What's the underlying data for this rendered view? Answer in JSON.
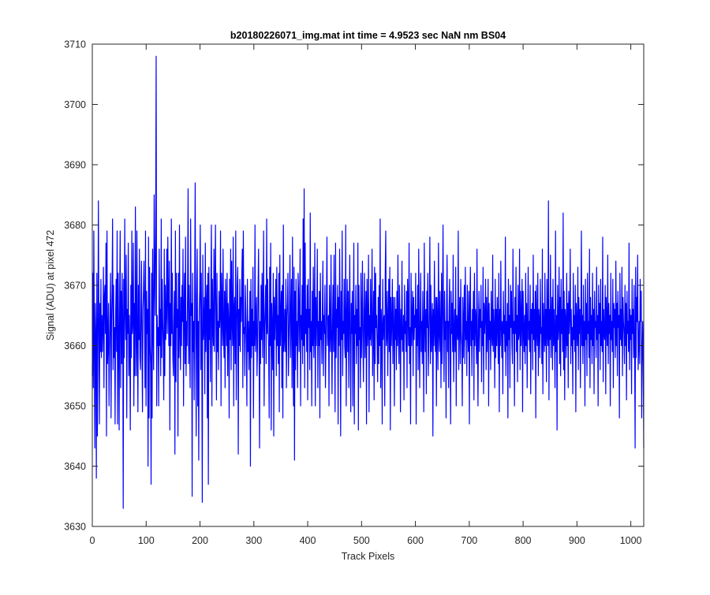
{
  "chart_data": {
    "type": "line",
    "title": "b20180226071_img.mat int time = 4.9523 sec  NaN nm BS04",
    "xlabel": "Track Pixels",
    "ylabel": "Signal (ADU) at pixel 472",
    "xlim": [
      0,
      1024
    ],
    "ylim": [
      3630,
      3710
    ],
    "xticks": [
      "0",
      "100",
      "200",
      "300",
      "400",
      "500",
      "600",
      "700",
      "800",
      "900",
      "1000"
    ],
    "yticks": [
      "3630",
      "3640",
      "3650",
      "3660",
      "3670",
      "3680",
      "3690",
      "3700",
      "3710"
    ],
    "grid": false,
    "legend": "none",
    "series_color": "#0000ff",
    "series": [
      {
        "values": [
          3655,
          3672,
          3653,
          3679,
          3660,
          3643,
          3667,
          3662,
          3638,
          3672,
          3645,
          3660,
          3684,
          3663,
          3647,
          3667,
          3659,
          3671,
          3658,
          3665,
          3659,
          3663,
          3673,
          3653,
          3668,
          3670,
          3662,
          3677,
          3645,
          3679,
          3657,
          3660,
          3667,
          3650,
          3659,
          3665,
          3672,
          3648,
          3664,
          3669,
          3681,
          3656,
          3670,
          3658,
          3663,
          3647,
          3665,
          3671,
          3659,
          3679,
          3647,
          3672,
          3662,
          3646,
          3668,
          3679,
          3653,
          3669,
          3657,
          3672,
          3664,
          3633,
          3671,
          3658,
          3681,
          3666,
          3661,
          3675,
          3648,
          3666,
          3662,
          3677,
          3655,
          3665,
          3660,
          3646,
          3670,
          3658,
          3679,
          3662,
          3664,
          3677,
          3650,
          3667,
          3655,
          3683,
          3664,
          3655,
          3679,
          3662,
          3649,
          3670,
          3661,
          3676,
          3658,
          3656,
          3665,
          3674,
          3660,
          3649,
          3666,
          3669,
          3674,
          3665,
          3653,
          3679,
          3650,
          3669,
          3662,
          3666,
          3640,
          3678,
          3648,
          3673,
          3660,
          3657,
          3637,
          3672,
          3648,
          3676,
          3663,
          3656,
          3685,
          3672,
          3665,
          3679,
          3708,
          3650,
          3665,
          3660,
          3663,
          3650,
          3676,
          3660,
          3666,
          3655,
          3681,
          3658,
          3671,
          3664,
          3660,
          3651,
          3676,
          3655,
          3670,
          3661,
          3665,
          3676,
          3662,
          3678,
          3668,
          3660,
          3674,
          3646,
          3667,
          3660,
          3681,
          3662,
          3672,
          3658,
          3655,
          3664,
          3669,
          3642,
          3679,
          3654,
          3672,
          3663,
          3666,
          3645,
          3672,
          3658,
          3680,
          3662,
          3656,
          3668,
          3660,
          3670,
          3664,
          3676,
          3650,
          3666,
          3672,
          3657,
          3678,
          3655,
          3664,
          3660,
          3669,
          3686,
          3657,
          3670,
          3661,
          3653,
          3681,
          3665,
          3667,
          3635,
          3672,
          3659,
          3664,
          3651,
          3670,
          3687,
          3662,
          3645,
          3668,
          3676,
          3650,
          3664,
          3641,
          3666,
          3669,
          3680,
          3656,
          3672,
          3660,
          3634,
          3675,
          3661,
          3663,
          3668,
          3652,
          3677,
          3659,
          3666,
          3670,
          3648,
          3672,
          3637,
          3673,
          3661,
          3666,
          3654,
          3670,
          3680,
          3650,
          3671,
          3663,
          3660,
          3676,
          3659,
          3670,
          3680,
          3664,
          3651,
          3672,
          3659,
          3664,
          3656,
          3669,
          3663,
          3665,
          3679,
          3650,
          3672,
          3667,
          3660,
          3676,
          3662,
          3658,
          3669,
          3653,
          3671,
          3665,
          3660,
          3672,
          3655,
          3667,
          3664,
          3648,
          3671,
          3661,
          3676,
          3656,
          3674,
          3664,
          3660,
          3678,
          3650,
          3666,
          3668,
          3657,
          3679,
          3651,
          3662,
          3670,
          3673,
          3642,
          3666,
          3660,
          3671,
          3659,
          3668,
          3664,
          3672,
          3676,
          3653,
          3679,
          3662,
          3663,
          3655,
          3670,
          3665,
          3660,
          3650,
          3671,
          3659,
          3664,
          3656,
          3662,
          3669,
          3640,
          3671,
          3658,
          3666,
          3660,
          3673,
          3648,
          3664,
          3660,
          3680,
          3659,
          3664,
          3668,
          3655,
          3660,
          3669,
          3676,
          3662,
          3643,
          3664,
          3657,
          3670,
          3661,
          3672,
          3658,
          3666,
          3679,
          3650,
          3663,
          3666,
          3670,
          3657,
          3681,
          3662,
          3671,
          3663,
          3659,
          3648,
          3673,
          3660,
          3677,
          3646,
          3667,
          3663,
          3656,
          3672,
          3645,
          3668,
          3661,
          3666,
          3671,
          3655,
          3673,
          3660,
          3665,
          3657,
          3672,
          3649,
          3675,
          3660,
          3665,
          3669,
          3653,
          3670,
          3648,
          3680,
          3659,
          3661,
          3666,
          3659,
          3671,
          3653,
          3665,
          3667,
          3672,
          3655,
          3661,
          3666,
          3675,
          3658,
          3664,
          3671,
          3653,
          3678,
          3661,
          3650,
          3673,
          3641,
          3669,
          3656,
          3671,
          3660,
          3664,
          3653,
          3672,
          3669,
          3659,
          3666,
          3676,
          3650,
          3665,
          3661,
          3670,
          3657,
          3681,
          3660,
          3686,
          3653,
          3677,
          3662,
          3666,
          3659,
          3670,
          3651,
          3671,
          3663,
          3666,
          3656,
          3682,
          3659,
          3664,
          3650,
          3669,
          3660,
          3673,
          3658,
          3663,
          3677,
          3650,
          3668,
          3660,
          3665,
          3676,
          3653,
          3664,
          3660,
          3669,
          3648,
          3672,
          3661,
          3664,
          3657,
          3666,
          3674,
          3655,
          3665,
          3662,
          3670,
          3653,
          3660,
          3667,
          3678,
          3660,
          3664,
          3665,
          3650,
          3670,
          3663,
          3659,
          3675,
          3662,
          3652,
          3664,
          3670,
          3659,
          3675,
          3661,
          3649,
          3677,
          3658,
          3666,
          3663,
          3670,
          3647,
          3668,
          3660,
          3676,
          3664,
          3645,
          3669,
          3661,
          3679,
          3655,
          3664,
          3662,
          3671,
          3660,
          3658,
          3680,
          3650,
          3663,
          3671,
          3659,
          3669,
          3653,
          3664,
          3675,
          3660,
          3649,
          3667,
          3662,
          3669,
          3650,
          3664,
          3677,
          3647,
          3665,
          3662,
          3670,
          3657,
          3666,
          3660,
          3677,
          3646,
          3670,
          3661,
          3663,
          3653,
          3672,
          3658,
          3664,
          3674,
          3660,
          3654,
          3666,
          3672,
          3658,
          3664,
          3669,
          3647,
          3671,
          3660,
          3663,
          3675,
          3649,
          3665,
          3661,
          3671,
          3660,
          3663,
          3676,
          3655,
          3662,
          3669,
          3651,
          3673,
          3657,
          3672,
          3663,
          3665,
          3660,
          3654,
          3668,
          3657,
          3670,
          3660,
          3681,
          3653,
          3666,
          3663,
          3647,
          3671,
          3661,
          3664,
          3665,
          3650,
          3672,
          3679,
          3660,
          3662,
          3669,
          3655,
          3664,
          3671,
          3659,
          3673,
          3646,
          3668,
          3660,
          3664,
          3671,
          3657,
          3668,
          3663,
          3650,
          3668,
          3661,
          3666,
          3656,
          3669,
          3660,
          3675,
          3662,
          3657,
          3670,
          3664,
          3649,
          3666,
          3661,
          3674,
          3659,
          3660,
          3665,
          3651,
          3670,
          3662,
          3664,
          3659,
          3669,
          3653,
          3671,
          3666,
          3660,
          3677,
          3657,
          3663,
          3647,
          3672,
          3660,
          3664,
          3669,
          3655,
          3668,
          3661,
          3665,
          3663,
          3672,
          3647,
          3666,
          3660,
          3670,
          3656,
          3676,
          3663,
          3653,
          3665,
          3672,
          3659,
          3664,
          3657,
          3669,
          3662,
          3649,
          3677,
          3664,
          3659,
          3666,
          3652,
          3669,
          3663,
          3672,
          3655,
          3661,
          3666,
          3678,
          3657,
          3670,
          3659,
          3663,
          3667,
          3645,
          3666,
          3660,
          3674,
          3662,
          3659,
          3668,
          3650,
          3668,
          3664,
          3656,
          3677,
          3662,
          3659,
          3669,
          3663,
          3653,
          3672,
          3657,
          3666,
          3680,
          3662,
          3654,
          3669,
          3661,
          3664,
          3648,
          3667,
          3675,
          3659,
          3664,
          3653,
          3666,
          3671,
          3660,
          3647,
          3669,
          3662,
          3667,
          3659,
          3675,
          3654,
          3662,
          3666,
          3659,
          3673,
          3650,
          3665,
          3663,
          3661,
          3679,
          3656,
          3664,
          3668,
          3657,
          3671,
          3662,
          3660,
          3650,
          3668,
          3658,
          3664,
          3670,
          3657,
          3673,
          3661,
          3664,
          3655,
          3670,
          3662,
          3659,
          3669,
          3647,
          3666,
          3673,
          3660,
          3664,
          3655,
          3666,
          3661,
          3669,
          3651,
          3672,
          3660,
          3666,
          3664,
          3657,
          3676,
          3660,
          3650,
          3664,
          3669,
          3659,
          3666,
          3663,
          3670,
          3654,
          3664,
          3660,
          3673,
          3652,
          3667,
          3662,
          3665,
          3671,
          3656,
          3668,
          3659,
          3664,
          3671,
          3650,
          3667,
          3661,
          3664,
          3656,
          3669,
          3662,
          3660,
          3675,
          3659,
          3666,
          3663,
          3653,
          3671,
          3658,
          3666,
          3660,
          3668,
          3663,
          3657,
          3672,
          3649,
          3666,
          3660,
          3674,
          3663,
          3658,
          3664,
          3652,
          3669,
          3662,
          3665,
          3659,
          3678,
          3655,
          3664,
          3660,
          3667,
          3648,
          3671,
          3661,
          3665,
          3653,
          3670,
          3663,
          3669,
          3660,
          3657,
          3676,
          3662,
          3664,
          3650,
          3668,
          3662,
          3673,
          3659,
          3665,
          3654,
          3670,
          3661,
          3662,
          3676,
          3656,
          3669,
          3660,
          3665,
          3671,
          3649,
          3669,
          3663,
          3659,
          3665,
          3657,
          3672,
          3660,
          3667,
          3653,
          3664,
          3673,
          3661,
          3664,
          3659,
          3670,
          3652,
          3666,
          3662,
          3667,
          3656,
          3675,
          3661,
          3666,
          3659,
          3669,
          3648,
          3670,
          3663,
          3660,
          3672,
          3655,
          3666,
          3664,
          3658,
          3671,
          3662,
          3663,
          3657,
          3676,
          3652,
          3667,
          3663,
          3659,
          3672,
          3660,
          3666,
          3654,
          3671,
          3662,
          3660,
          3684,
          3651,
          3666,
          3661,
          3675,
          3658,
          3664,
          3668,
          3656,
          3671,
          3660,
          3666,
          3661,
          3653,
          3679,
          3659,
          3665,
          3646,
          3670,
          3661,
          3663,
          3673,
          3657,
          3668,
          3655,
          3671,
          3662,
          3666,
          3659,
          3682,
          3656,
          3669,
          3651,
          3666,
          3664,
          3658,
          3672,
          3660,
          3667,
          3653,
          3669,
          3662,
          3665,
          3676,
          3657,
          3666,
          3660,
          3663,
          3652,
          3672,
          3661,
          3665,
          3659,
          3670,
          3649,
          3667,
          3663,
          3660,
          3673,
          3656,
          3668,
          3662,
          3666,
          3653,
          3664,
          3679,
          3660,
          3665,
          3657,
          3670,
          3660,
          3664,
          3650,
          3671,
          3661,
          3667,
          3655,
          3672,
          3662,
          3664,
          3658,
          3676,
          3653,
          3668,
          3661,
          3665,
          3657,
          3672,
          3660,
          3666,
          3652,
          3669,
          3663,
          3664,
          3658,
          3673,
          3661,
          3665,
          3650,
          3670,
          3662,
          3667,
          3656,
          3671,
          3660,
          3664,
          3659,
          3678,
          3654,
          3666,
          3662,
          3661,
          3670,
          3652,
          3668,
          3664,
          3660,
          3675,
          3657,
          3667,
          3662,
          3665,
          3650,
          3672,
          3661,
          3664,
          3659,
          3671,
          3653,
          3667,
          3663,
          3666,
          3658,
          3674,
          3660,
          3667,
          3655,
          3669,
          3663,
          3665,
          3648,
          3672,
          3661,
          3666,
          3660,
          3673,
          3655,
          3668,
          3664,
          3662,
          3657,
          3670,
          3660,
          3667,
          3651,
          3669,
          3662,
          3664,
          3659,
          3677,
          3656,
          3666,
          3661,
          3665,
          3652,
          3671,
          3662,
          3666,
          3658,
          3670,
          3660,
          3643,
          3673,
          3658,
          3668,
          3664,
          3675,
          3656,
          3660,
          3664,
          3657,
          3671,
          3664,
          3669,
          3648,
          3659,
          3664,
          3657,
          3643
        ]
      }
    ]
  }
}
